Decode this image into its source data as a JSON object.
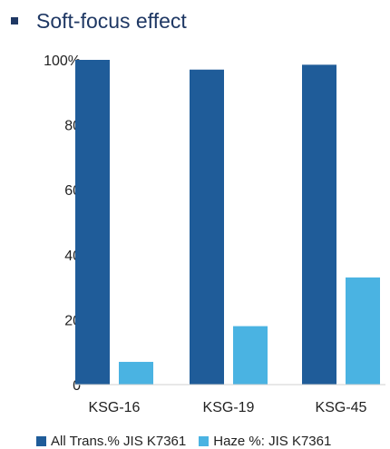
{
  "header": {
    "title": "Soft-focus effect"
  },
  "chart_data": {
    "type": "bar",
    "categories": [
      "KSG-16",
      "KSG-19",
      "KSG-45"
    ],
    "series": [
      {
        "name": "All Trans.% JIS K7361",
        "color": "#1f5c99",
        "values": [
          100,
          97,
          98.5
        ]
      },
      {
        "name": "Haze %: JIS K7361",
        "color": "#4ab3e2",
        "values": [
          7,
          18,
          33
        ]
      }
    ],
    "ylim": [
      0,
      100
    ],
    "yticks": [
      {
        "value": 0,
        "label": "0"
      },
      {
        "value": 20,
        "label": "20"
      },
      {
        "value": 40,
        "label": "40"
      },
      {
        "value": 60,
        "label": "60"
      },
      {
        "value": 80,
        "label": "80"
      },
      {
        "value": 100,
        "label": "100%"
      }
    ],
    "grid": false,
    "legend_position": "bottom"
  }
}
